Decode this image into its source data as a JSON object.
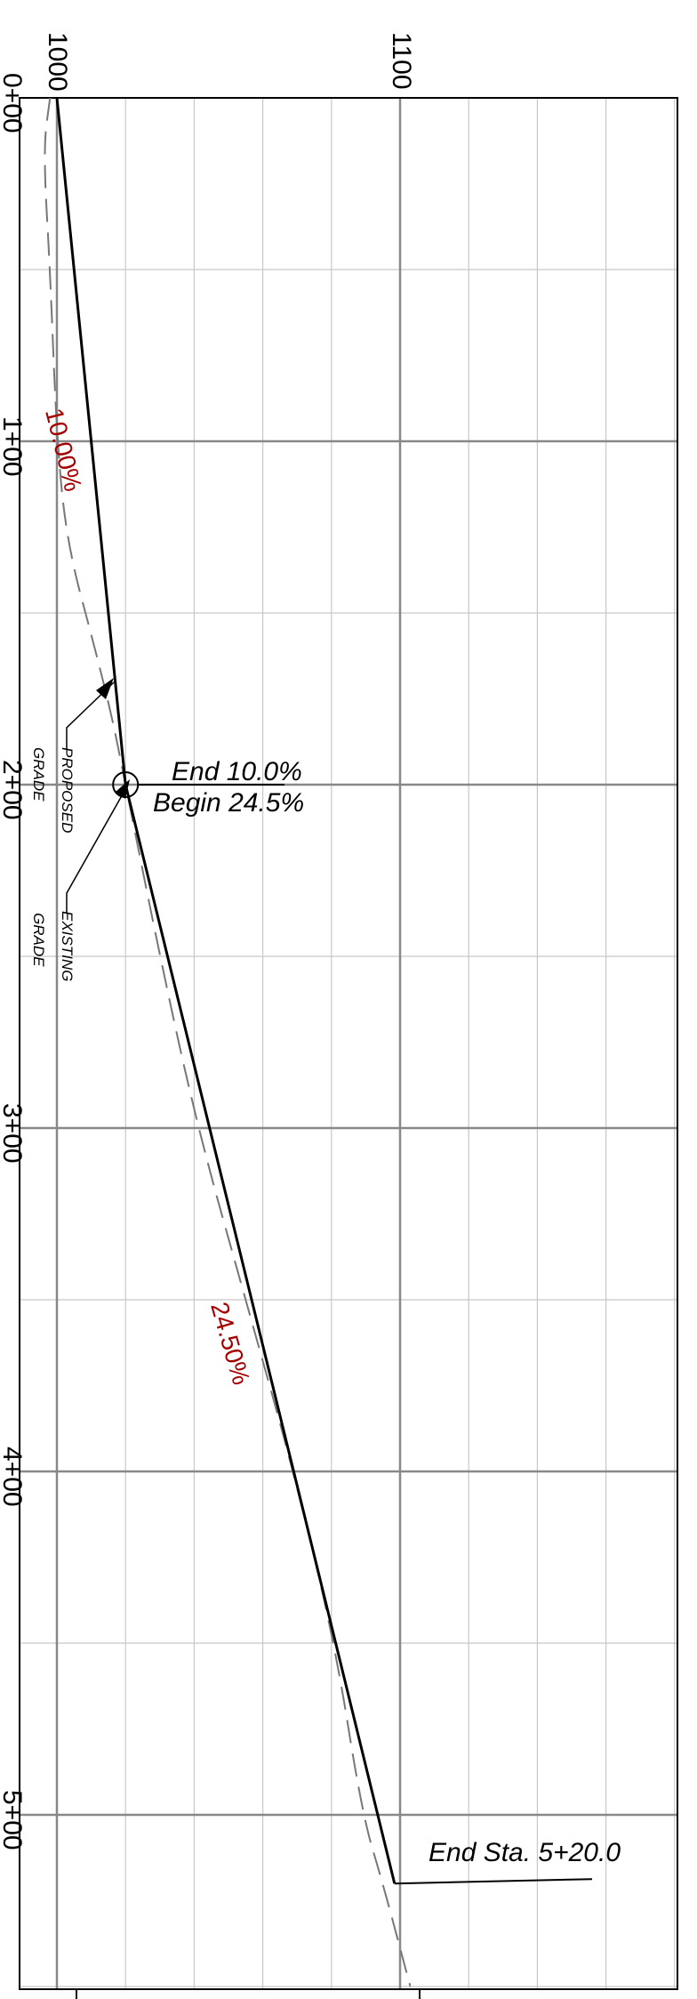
{
  "elevation_axis": {
    "label_1000": "1000",
    "label_1100": "1100"
  },
  "station_axis": {
    "ticks": [
      "0+00",
      "1+00",
      "2+00",
      "3+00",
      "4+00",
      "5+00"
    ]
  },
  "annotations": {
    "grade_1": "10.00%",
    "grade_2": "24.50%",
    "pvi_line1": "End 10.0%",
    "pvi_line2": "Begin 24.5%",
    "end_station": "End Sta. 5+20.0",
    "proposed_line1": "PROPOSED",
    "proposed_line2": "GRADE",
    "existing_line1": "EXISTING",
    "existing_line2": "GRADE"
  },
  "colors": {
    "grade_label": "#a50000",
    "grid_major": "#888888",
    "grid_minor": "#c8c8c8",
    "frame": "#000000",
    "existing_ground": "#777777"
  },
  "chart_data": {
    "type": "line",
    "orientation": "profile rotated 90° clockwise (station runs down the page, elevation increases to the right)",
    "station_ticks": [
      "0+00",
      "1+00",
      "2+00",
      "3+00",
      "4+00",
      "5+00"
    ],
    "elevation_ticks": [
      1000,
      1100
    ],
    "series": [
      {
        "role": "proposed grade",
        "style": "solid",
        "points": [
          {
            "station": 0,
            "elevation": 1000
          },
          {
            "station": 200,
            "elevation": 1020
          },
          {
            "station": 520,
            "elevation": 1098.4
          }
        ]
      },
      {
        "role": "existing grade",
        "style": "dashed",
        "points": [
          {
            "station": 0,
            "elevation": 998
          },
          {
            "station": 15,
            "elevation": 996
          },
          {
            "station": 50,
            "elevation": 998
          },
          {
            "station": 100,
            "elevation": 1000
          },
          {
            "station": 130,
            "elevation": 1003
          },
          {
            "station": 160,
            "elevation": 1011
          },
          {
            "station": 180,
            "elevation": 1016
          },
          {
            "station": 200,
            "elevation": 1020
          },
          {
            "station": 250,
            "elevation": 1030
          },
          {
            "station": 300,
            "elevation": 1041
          },
          {
            "station": 350,
            "elevation": 1055
          },
          {
            "station": 400,
            "elevation": 1069
          },
          {
            "station": 450,
            "elevation": 1081
          },
          {
            "station": 500,
            "elevation": 1089
          },
          {
            "station": 520,
            "elevation": 1095
          },
          {
            "station": 550,
            "elevation": 1103
          }
        ]
      }
    ],
    "grid": true
  }
}
